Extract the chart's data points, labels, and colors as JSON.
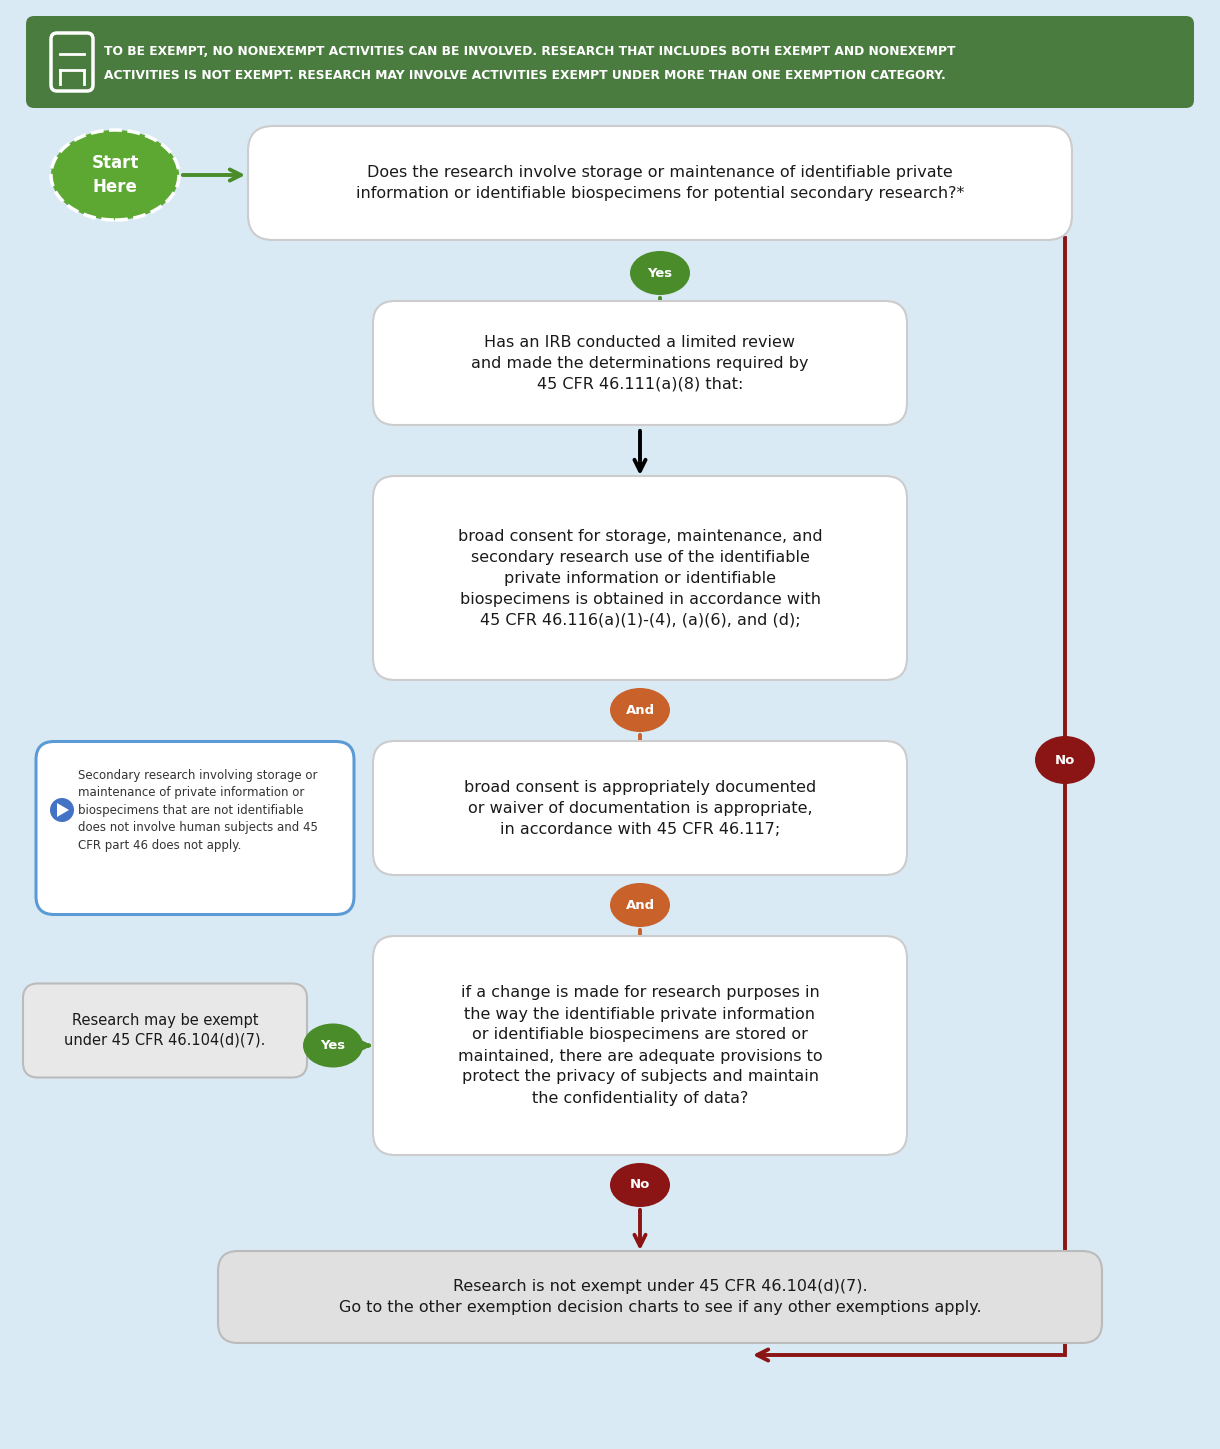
{
  "bg_color": "#daeaf5",
  "header_bg": "#4a7c3f",
  "header_text_line1": "TO BE EXEMPT, NO NONEXEMPT ACTIVITIES CAN BE INVOLVED. RESEARCH THAT INCLUDES BOTH EXEMPT AND NONEXEMPT",
  "header_text_line2": "ACTIVITIES IS NOT EXEMPT. RESEARCH MAY INVOLVE ACTIVITIES EXEMPT UNDER MORE THAN ONE EXEMPTION CATEGORY.",
  "header_text_color": "#ffffff",
  "start_fill": "#5da832",
  "start_text": "Start\nHere",
  "green_arrow_color": "#4a8c2a",
  "orange_color": "#c8622a",
  "dark_red_color": "#8b1515",
  "box1_text": "Does the research involve storage or maintenance of identifiable private\ninformation or identifiable biospecimens for potential secondary research?*",
  "box2_text": "Has an IRB conducted a limited review\nand made the determinations required by\n45 CFR 46.111(a)(8) that:",
  "box3_text": "broad consent for storage, maintenance, and\nsecondary research use of the identifiable\nprivate information or identifiable\nbiospecimens is obtained in accordance with\n45 CFR 46.116(a)(1)-(4), (a)(6), and (d);",
  "box4_text": "broad consent is appropriately documented\nor waiver of documentation is appropriate,\nin accordance with 45 CFR 46.117;",
  "box5_text": "if a change is made for research purposes in\nthe way the identifiable private information\nor identifiable biospecimens are stored or\nmaintained, there are adequate provisions to\nprotect the privacy of subjects and maintain\nthe confidentiality of data?",
  "side_box_text": "Secondary research involving storage or\nmaintenance of private information or\nbiospecimens that are not identifiable\ndoes not involve human subjects and 45\nCFR part 46 does not apply.",
  "side_box_border": "#5b9bd5",
  "result_yes_text": "Research may be exempt\nunder 45 CFR 46.104(d)(7).",
  "result_no_text": "Research is not exempt under 45 CFR 46.104(d)(7).\nGo to the other exemption decision charts to see if any other exemptions apply.",
  "yes_label": "Yes",
  "no_label": "No",
  "and_label": "And"
}
